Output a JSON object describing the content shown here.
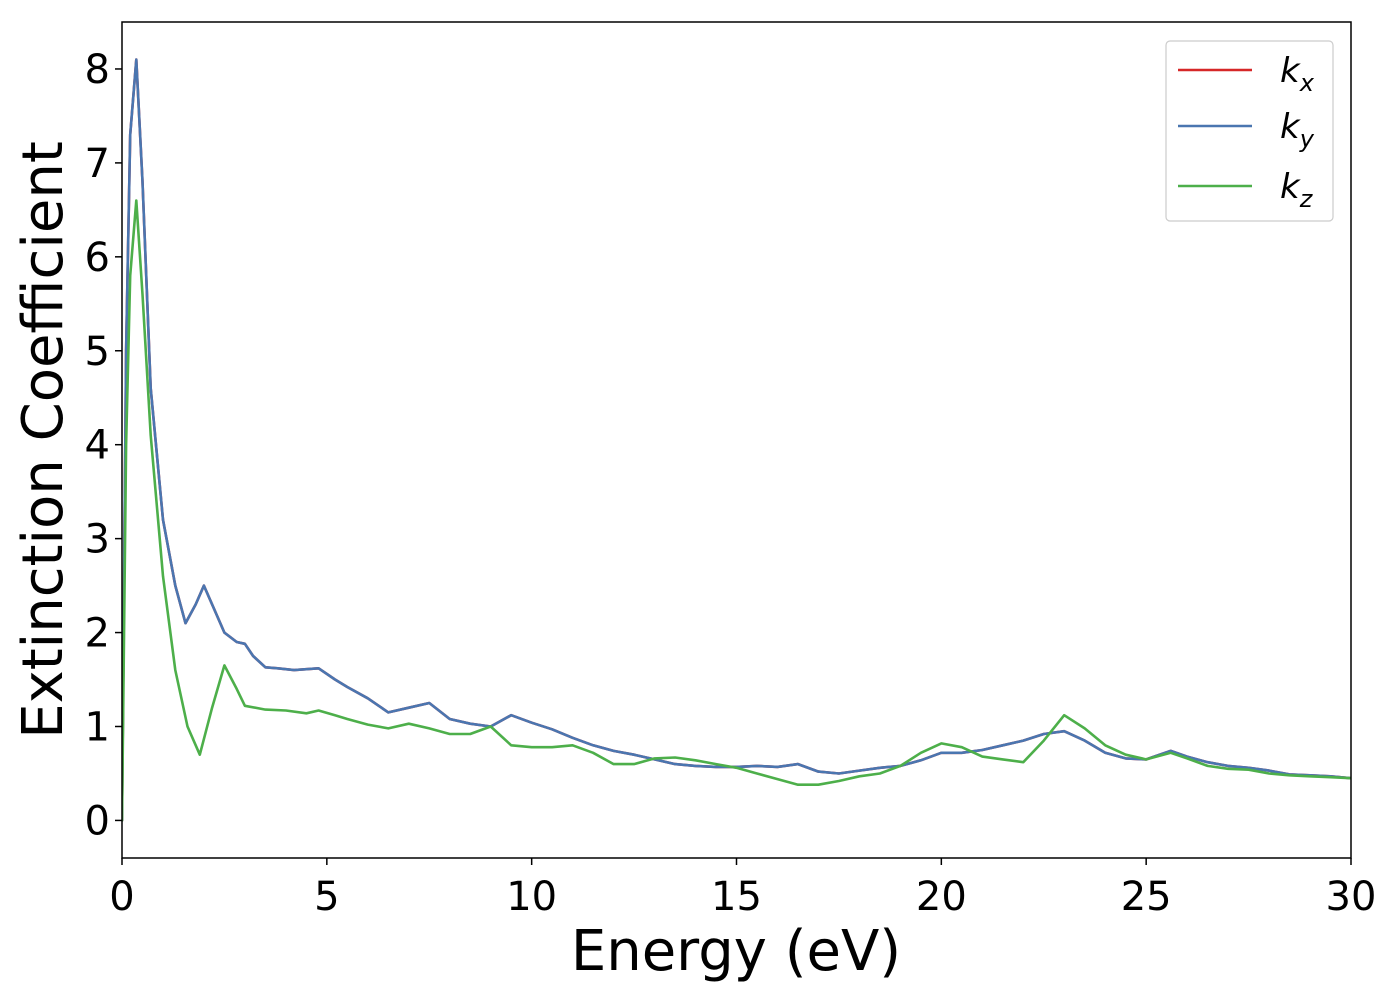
{
  "chart_data": {
    "type": "line",
    "title": "",
    "xlabel": "Energy (eV)",
    "ylabel": "Extinction Coefficient",
    "xlim": [
      0,
      30
    ],
    "ylim": [
      -0.4,
      8.5
    ],
    "xticks": [
      0,
      5,
      10,
      15,
      20,
      25,
      30
    ],
    "yticks": [
      0,
      1,
      2,
      3,
      4,
      5,
      6,
      7,
      8
    ],
    "grid": false,
    "legend_position": "top-right",
    "series": [
      {
        "name": "k_x",
        "color": "#d62728",
        "x": [
          0,
          0.1,
          0.2,
          0.35,
          0.5,
          0.7,
          1.0,
          1.3,
          1.55,
          1.8,
          2.0,
          2.2,
          2.5,
          2.8,
          3.0,
          3.2,
          3.5,
          3.8,
          4.2,
          4.8,
          5.2,
          5.5,
          6.0,
          6.5,
          7.0,
          7.5,
          8.0,
          8.5,
          9.0,
          9.5,
          10.0,
          10.5,
          11.0,
          11.5,
          12.0,
          12.5,
          13.0,
          13.5,
          14.0,
          14.5,
          15.0,
          15.5,
          16.0,
          16.5,
          17.0,
          17.5,
          18.0,
          18.5,
          19.0,
          19.5,
          20.0,
          20.5,
          21.0,
          21.5,
          22.0,
          22.5,
          23.0,
          23.5,
          24.0,
          24.5,
          25.0,
          25.6,
          26.0,
          26.5,
          27.0,
          27.5,
          28.0,
          28.5,
          29.0,
          29.5,
          30.0
        ],
        "y": [
          0.0,
          5.0,
          7.3,
          8.1,
          6.8,
          4.6,
          3.2,
          2.5,
          2.1,
          2.3,
          2.5,
          2.3,
          2.0,
          1.9,
          1.88,
          1.75,
          1.63,
          1.62,
          1.6,
          1.62,
          1.5,
          1.42,
          1.3,
          1.15,
          1.2,
          1.25,
          1.08,
          1.03,
          1.0,
          1.12,
          1.04,
          0.97,
          0.88,
          0.8,
          0.74,
          0.7,
          0.65,
          0.6,
          0.58,
          0.57,
          0.57,
          0.58,
          0.57,
          0.6,
          0.52,
          0.5,
          0.53,
          0.56,
          0.58,
          0.64,
          0.72,
          0.72,
          0.75,
          0.8,
          0.85,
          0.92,
          0.95,
          0.85,
          0.72,
          0.66,
          0.65,
          0.74,
          0.68,
          0.62,
          0.58,
          0.56,
          0.53,
          0.49,
          0.48,
          0.47,
          0.45
        ]
      },
      {
        "name": "k_y",
        "color": "#4a76b0",
        "x": [
          0,
          0.1,
          0.2,
          0.35,
          0.5,
          0.7,
          1.0,
          1.3,
          1.55,
          1.8,
          2.0,
          2.2,
          2.5,
          2.8,
          3.0,
          3.2,
          3.5,
          3.8,
          4.2,
          4.8,
          5.2,
          5.5,
          6.0,
          6.5,
          7.0,
          7.5,
          8.0,
          8.5,
          9.0,
          9.5,
          10.0,
          10.5,
          11.0,
          11.5,
          12.0,
          12.5,
          13.0,
          13.5,
          14.0,
          14.5,
          15.0,
          15.5,
          16.0,
          16.5,
          17.0,
          17.5,
          18.0,
          18.5,
          19.0,
          19.5,
          20.0,
          20.5,
          21.0,
          21.5,
          22.0,
          22.5,
          23.0,
          23.5,
          24.0,
          24.5,
          25.0,
          25.6,
          26.0,
          26.5,
          27.0,
          27.5,
          28.0,
          28.5,
          29.0,
          29.5,
          30.0
        ],
        "y": [
          0.0,
          5.0,
          7.3,
          8.1,
          6.8,
          4.6,
          3.2,
          2.5,
          2.1,
          2.3,
          2.5,
          2.3,
          2.0,
          1.9,
          1.88,
          1.75,
          1.63,
          1.62,
          1.6,
          1.62,
          1.5,
          1.42,
          1.3,
          1.15,
          1.2,
          1.25,
          1.08,
          1.03,
          1.0,
          1.12,
          1.04,
          0.97,
          0.88,
          0.8,
          0.74,
          0.7,
          0.65,
          0.6,
          0.58,
          0.57,
          0.57,
          0.58,
          0.57,
          0.6,
          0.52,
          0.5,
          0.53,
          0.56,
          0.58,
          0.64,
          0.72,
          0.72,
          0.75,
          0.8,
          0.85,
          0.92,
          0.95,
          0.85,
          0.72,
          0.66,
          0.65,
          0.74,
          0.68,
          0.62,
          0.58,
          0.56,
          0.53,
          0.49,
          0.48,
          0.47,
          0.45
        ]
      },
      {
        "name": "k_z",
        "color": "#4daf4a",
        "x": [
          0,
          0.1,
          0.2,
          0.35,
          0.5,
          0.7,
          1.0,
          1.3,
          1.6,
          1.9,
          2.2,
          2.5,
          2.8,
          3.0,
          3.5,
          4.0,
          4.5,
          4.8,
          5.2,
          5.5,
          6.0,
          6.5,
          7.0,
          7.5,
          8.0,
          8.5,
          9.0,
          9.5,
          10.0,
          10.5,
          11.0,
          11.5,
          12.0,
          12.5,
          13.0,
          13.5,
          14.0,
          14.5,
          15.0,
          15.5,
          16.0,
          16.5,
          17.0,
          17.5,
          18.0,
          18.5,
          19.0,
          19.5,
          20.0,
          20.5,
          21.0,
          21.5,
          22.0,
          22.5,
          23.0,
          23.5,
          24.0,
          24.5,
          25.0,
          25.6,
          26.0,
          26.5,
          27.0,
          27.5,
          28.0,
          28.5,
          29.0,
          29.5,
          30.0
        ],
        "y": [
          0.0,
          4.0,
          5.8,
          6.6,
          5.6,
          4.1,
          2.6,
          1.6,
          1.0,
          0.7,
          1.2,
          1.65,
          1.4,
          1.22,
          1.18,
          1.17,
          1.14,
          1.17,
          1.12,
          1.08,
          1.02,
          0.98,
          1.03,
          0.98,
          0.92,
          0.92,
          1.0,
          0.8,
          0.78,
          0.78,
          0.8,
          0.72,
          0.6,
          0.6,
          0.66,
          0.67,
          0.64,
          0.6,
          0.56,
          0.5,
          0.44,
          0.38,
          0.38,
          0.42,
          0.47,
          0.5,
          0.58,
          0.72,
          0.82,
          0.78,
          0.68,
          0.65,
          0.62,
          0.85,
          1.12,
          0.98,
          0.8,
          0.7,
          0.65,
          0.72,
          0.66,
          0.58,
          0.55,
          0.54,
          0.5,
          0.48,
          0.47,
          0.46,
          0.45
        ]
      }
    ]
  },
  "legend": [
    {
      "base": "k",
      "sub": "x"
    },
    {
      "base": "k",
      "sub": "y"
    },
    {
      "base": "k",
      "sub": "z"
    }
  ]
}
